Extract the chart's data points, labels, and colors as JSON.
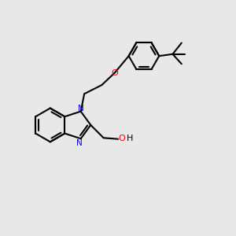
{
  "bg_color": "#e8e8e8",
  "bond_color": "#000000",
  "N_color": "#0000ff",
  "O_color": "#ff0000",
  "line_width": 1.5,
  "figsize": [
    3.0,
    3.0
  ],
  "dpi": 100,
  "xlim": [
    0,
    10
  ],
  "ylim": [
    0,
    10
  ]
}
